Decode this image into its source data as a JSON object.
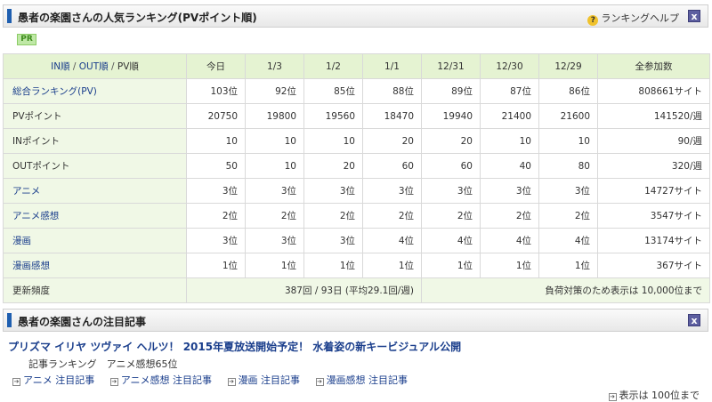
{
  "ranking_panel": {
    "title": "愚者の楽園さんの人気ランキング(PVポイント順)",
    "help_label": "ランキングヘルプ",
    "close_label": "x",
    "pr_badge": "PR",
    "sort_header": {
      "in": "IN順",
      "sep1": " / ",
      "out": "OUT順",
      "sep2": " / ",
      "pv": "PV順"
    },
    "columns": [
      "今日",
      "1/3",
      "1/2",
      "1/1",
      "12/31",
      "12/30",
      "12/29",
      "全参加数"
    ],
    "rows": [
      {
        "label": "総合ランキング(PV)",
        "link": true,
        "values": [
          "103位",
          "92位",
          "85位",
          "88位",
          "89位",
          "87位",
          "86位",
          "808661サイト"
        ]
      },
      {
        "label": "PVポイント",
        "link": false,
        "values": [
          "20750",
          "19800",
          "19560",
          "18470",
          "19940",
          "21400",
          "21600",
          "141520/週"
        ]
      },
      {
        "label": "INポイント",
        "link": false,
        "values": [
          "10",
          "10",
          "10",
          "20",
          "20",
          "10",
          "10",
          "90/週"
        ]
      },
      {
        "label": "OUTポイント",
        "link": false,
        "values": [
          "50",
          "10",
          "20",
          "60",
          "60",
          "40",
          "80",
          "320/週"
        ]
      },
      {
        "label": "アニメ",
        "link": true,
        "values": [
          "3位",
          "3位",
          "3位",
          "3位",
          "3位",
          "3位",
          "3位",
          "14727サイト"
        ]
      },
      {
        "label": "アニメ感想",
        "link": true,
        "values": [
          "2位",
          "2位",
          "2位",
          "2位",
          "2位",
          "2位",
          "2位",
          "3547サイト"
        ]
      },
      {
        "label": "漫画",
        "link": true,
        "values": [
          "3位",
          "3位",
          "3位",
          "4位",
          "4位",
          "4位",
          "4位",
          "13174サイト"
        ]
      },
      {
        "label": "漫画感想",
        "link": true,
        "values": [
          "1位",
          "1位",
          "1位",
          "1位",
          "1位",
          "1位",
          "1位",
          "367サイト"
        ]
      }
    ],
    "footer": {
      "label": "更新頻度",
      "frequency": "387回 / 93日 (平均29.1回/週)",
      "note": "負荷対策のため表示は 10,000位まで"
    }
  },
  "articles_panel": {
    "title": "愚者の楽園さんの注目記事",
    "close_label": "x",
    "article_title": "プリズマ イリヤ ツヴァイ ヘルツ！ 2015年夏放送開始予定！ 水着姿の新キービジュアル公開",
    "article_meta": "記事ランキング　アニメ感想65位",
    "links": [
      "アニメ 注目記事",
      "アニメ感想 注目記事",
      "漫画 注目記事",
      "漫画感想 注目記事"
    ],
    "more_label": "表示は 100位まで"
  }
}
